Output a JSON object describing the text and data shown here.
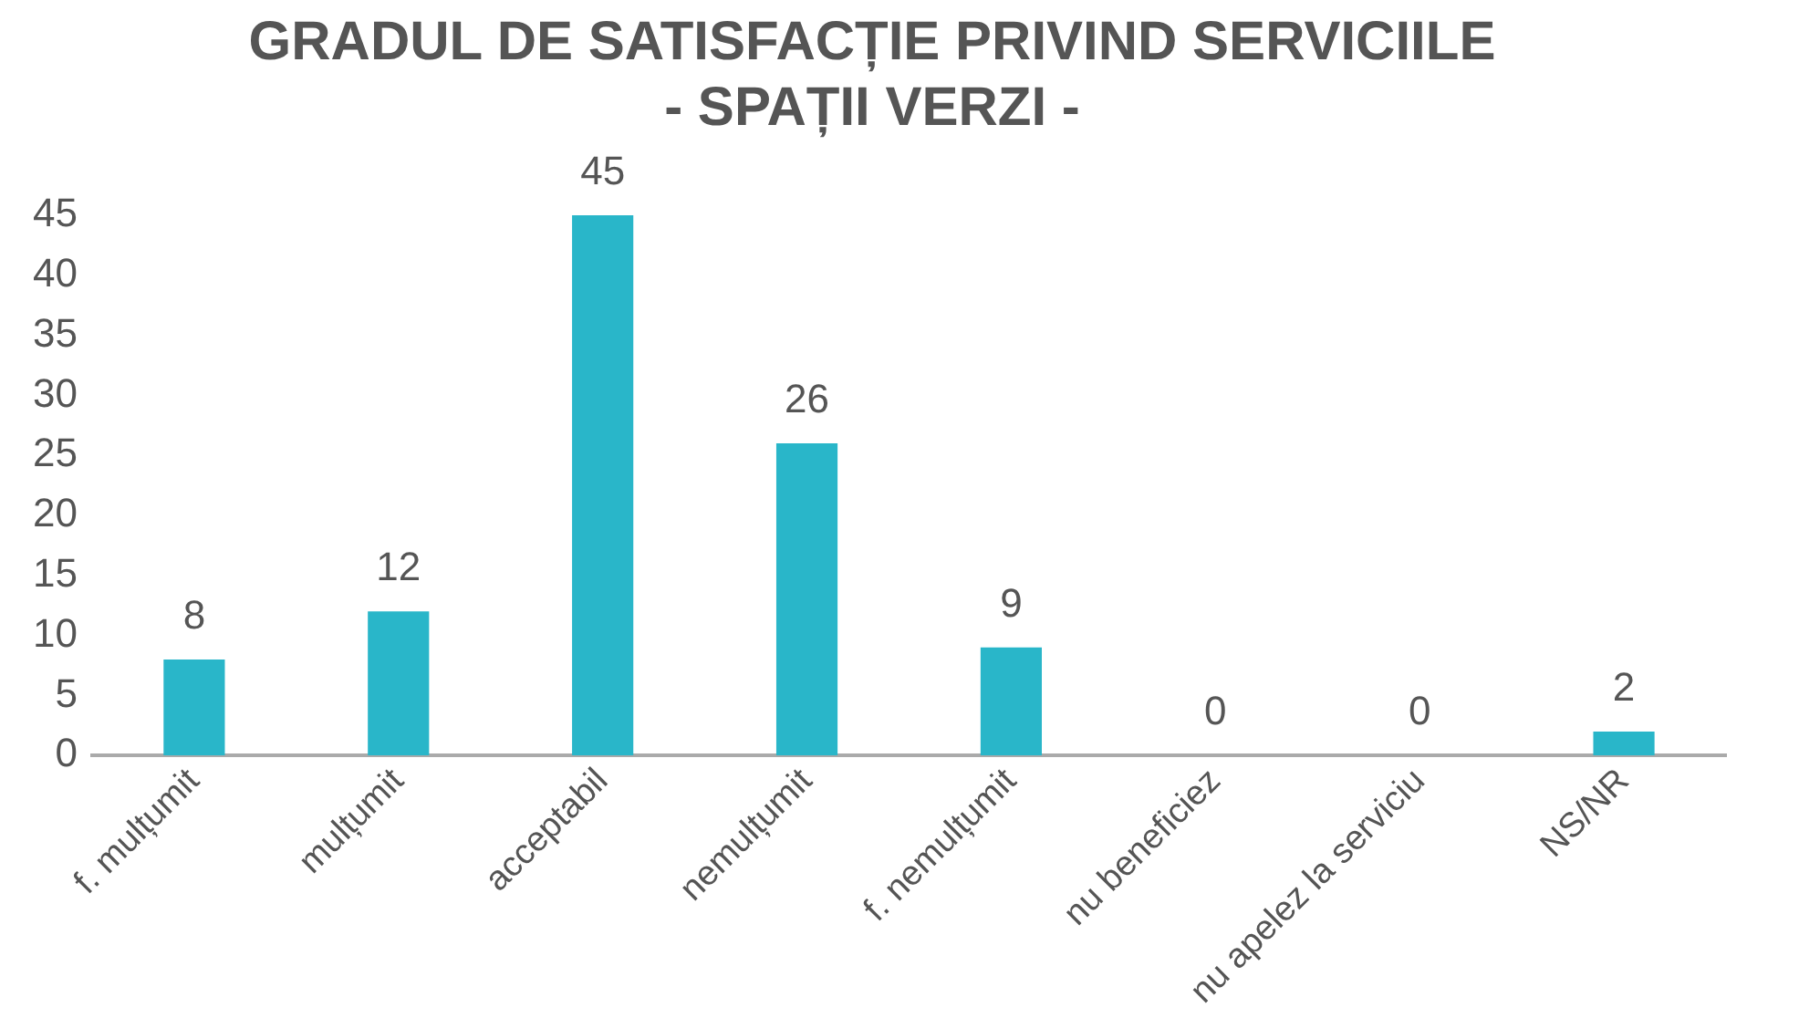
{
  "chart_data": {
    "type": "bar",
    "title": "GRADUL DE SATISFACȚIE PRIVIND SERVICIILE\n- SPAȚII VERZI -",
    "categories": [
      "f. mulțumit",
      "mulțumit",
      "acceptabil",
      "nemulțumit",
      "f. nemulțumit",
      "nu beneficiez",
      "nu apelez la serviciu",
      "NS/NR"
    ],
    "values": [
      8,
      12,
      45,
      26,
      9,
      0,
      0,
      2
    ],
    "color": "#29b6c9",
    "ylim": [
      0,
      45
    ],
    "yticks": [
      0,
      5,
      10,
      15,
      20,
      25,
      30,
      35,
      40,
      45
    ],
    "data_labels": true,
    "grid": false,
    "legend": false
  }
}
